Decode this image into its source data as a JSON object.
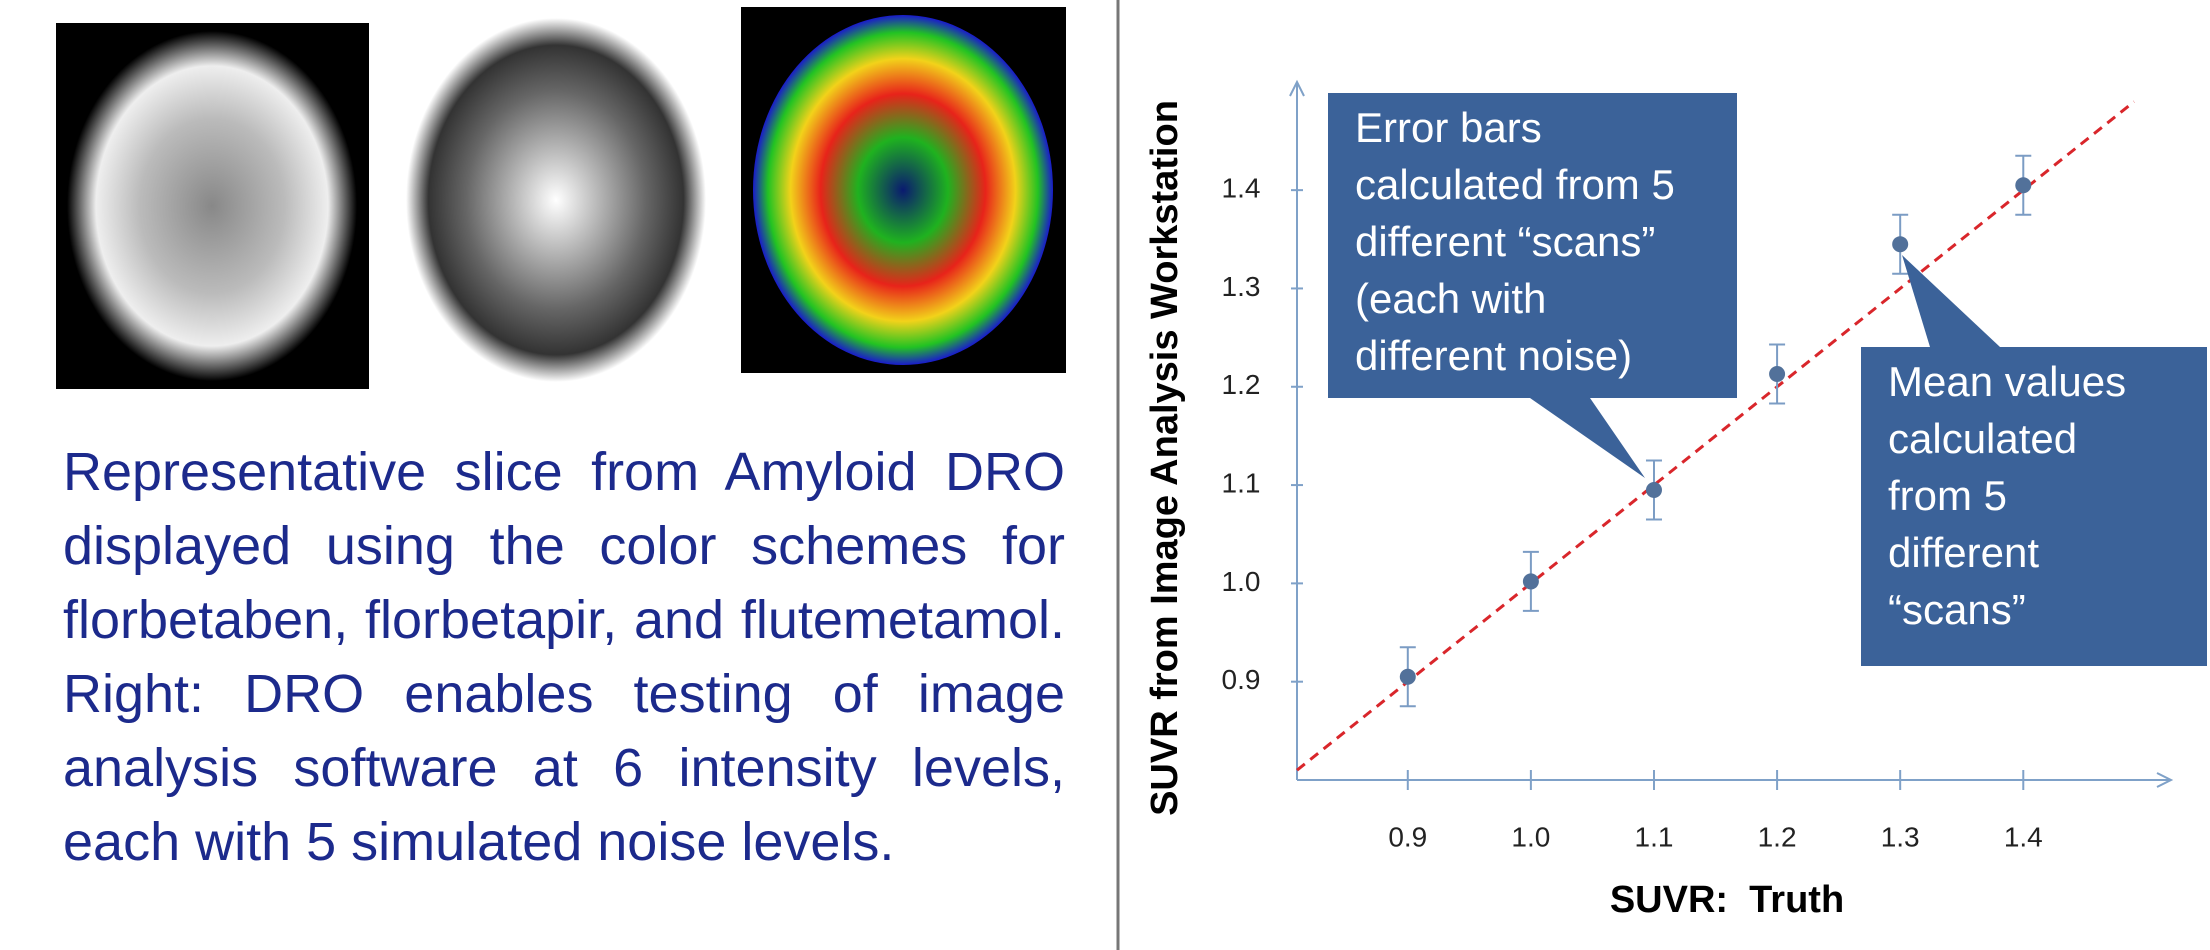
{
  "caption": "Representative slice from Amyloid DRO displayed using the color schemes for florbetaben, florbetapir, and flutemetamol. Right: DRO enables testing of image analysis software at 6 intensity levels, each with 5 simulated noise levels.",
  "chart_data": {
    "type": "errorbar",
    "x_label": "SUVR:  Truth",
    "y_label": "SUVR from Image Analysis Workstation",
    "x": [
      0.9,
      1.0,
      1.1,
      1.2,
      1.3,
      1.4
    ],
    "values": [
      0.905,
      1.002,
      1.095,
      1.213,
      1.345,
      1.405
    ],
    "errors": [
      0.03,
      0.03,
      0.03,
      0.03,
      0.03,
      0.03
    ],
    "color": "#52719a",
    "error_color": "#7b9cc4",
    "identity_line": true,
    "identity_color": "#d9262b",
    "xlim": [
      0.81,
      1.52
    ],
    "ylim": [
      0.8,
      1.51
    ],
    "xticks": [
      0.9,
      {
        "value": 1.0,
        "label": "1.0"
      },
      1.1,
      1.2,
      1.3,
      1.4
    ],
    "yticks": [
      0.9,
      {
        "value": 1.0,
        "label": "1.0"
      },
      1.1,
      1.2,
      1.3,
      1.4
    ],
    "annotations": [
      {
        "lines": [
          "Error bars",
          "calculated from 5",
          "different “scans”",
          "(each with",
          "different noise)"
        ]
      },
      {
        "lines": [
          "Mean values",
          "calculated",
          "from 5",
          "different",
          "“scans”"
        ]
      }
    ]
  }
}
